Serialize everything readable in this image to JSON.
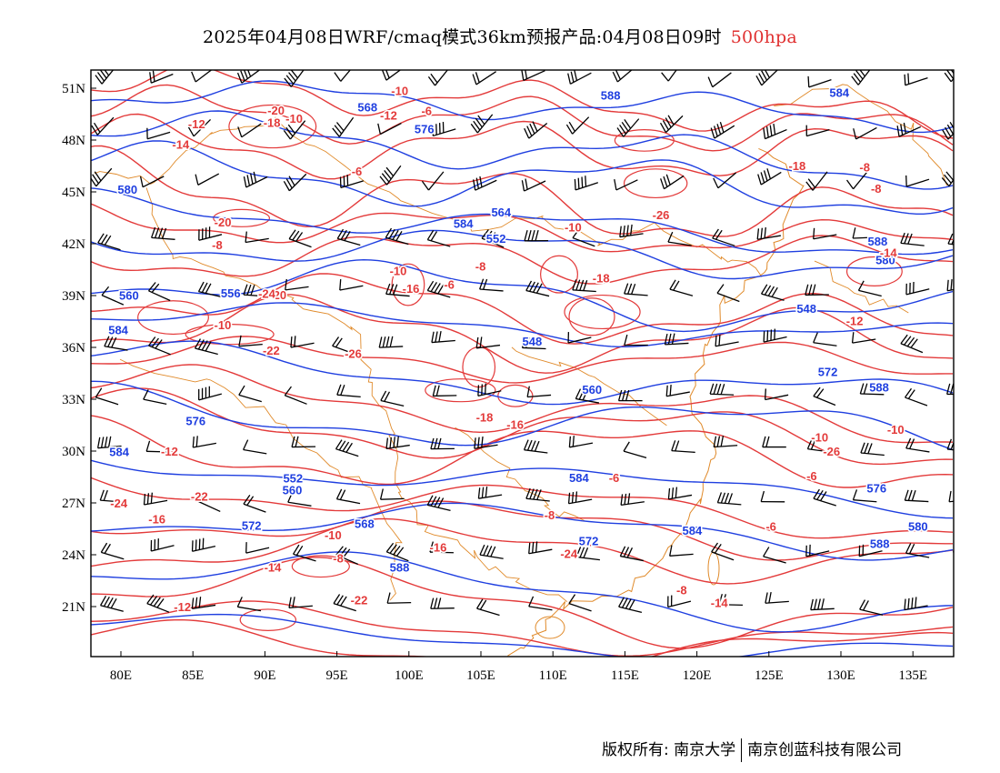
{
  "title": {
    "main": "2025年04月08日WRF/cmaq模式36km预报产品:04月08日09时",
    "level": "500hpa"
  },
  "axes": {
    "lon_ticks": [
      "80E",
      "85E",
      "90E",
      "95E",
      "100E",
      "105E",
      "110E",
      "115E",
      "120E",
      "125E",
      "130E",
      "135E"
    ],
    "lat_ticks": [
      "51N",
      "48N",
      "45N",
      "42N",
      "39N",
      "36N",
      "33N",
      "30N",
      "27N",
      "24N",
      "21N"
    ]
  },
  "colors": {
    "height": "#1f3fe0",
    "temperature": "#e33a3a",
    "boundary": "#e08a2a",
    "wind": "#000000"
  },
  "labels": {
    "height": [
      "584",
      "568",
      "548",
      "548",
      "552",
      "552",
      "556",
      "572",
      "576",
      "560",
      "560",
      "564",
      "568",
      "580",
      "584",
      "560",
      "572",
      "576",
      "580",
      "584",
      "584",
      "588",
      "572",
      "576",
      "580",
      "584",
      "588",
      "588",
      "588",
      "584",
      "588"
    ],
    "temperature": [
      "-24",
      "-26",
      "-26",
      "-24",
      "-26",
      "-20",
      "-18",
      "-24",
      "-22",
      "-22",
      "-16",
      "-20",
      "-14",
      "-12",
      "-10",
      "-22",
      "-18",
      "-16",
      "-16",
      "-10",
      "-14",
      "-12",
      "-20",
      "-10",
      "-8",
      "-10",
      "-12",
      "-18",
      "-18",
      "-14",
      "-14",
      "-12",
      "-8",
      "-6",
      "-8",
      "-10",
      "-10",
      "-6",
      "-8",
      "-6",
      "-6",
      "-8",
      "-10",
      "-6",
      "-8",
      "-6",
      "-16",
      "-12",
      "-10",
      "-8"
    ]
  },
  "footer": {
    "left": "版权所有: 南京大学",
    "right": "南京创蓝科技有限公司"
  }
}
